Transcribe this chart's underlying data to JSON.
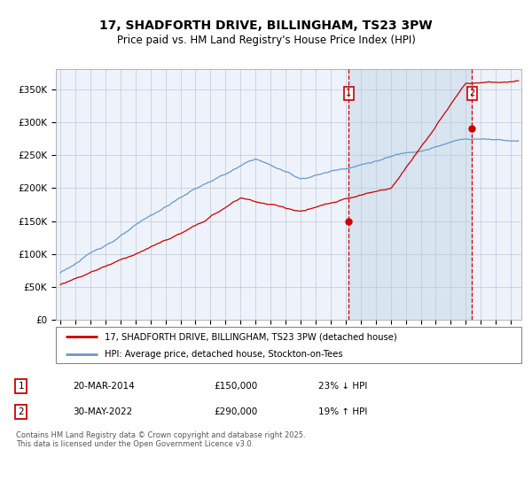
{
  "title": "17, SHADFORTH DRIVE, BILLINGHAM, TS23 3PW",
  "subtitle": "Price paid vs. HM Land Registry's House Price Index (HPI)",
  "legend_line1": "17, SHADFORTH DRIVE, BILLINGHAM, TS23 3PW (detached house)",
  "legend_line2": "HPI: Average price, detached house, Stockton-on-Tees",
  "sale1_date": "20-MAR-2014",
  "sale1_price": 150000,
  "sale1_hpi": "23% ↓ HPI",
  "sale2_date": "30-MAY-2022",
  "sale2_price": 290000,
  "sale2_hpi": "19% ↑ HPI",
  "footer": "Contains HM Land Registry data © Crown copyright and database right 2025.\nThis data is licensed under the Open Government Licence v3.0.",
  "red_color": "#cc0000",
  "blue_color": "#6699cc",
  "plot_bg_color": "#eef2fa",
  "shade_color": "#d8e4f0",
  "grid_color": "#c0c8d8",
  "ylim": [
    0,
    380000
  ],
  "year_start": 1995,
  "year_end": 2025,
  "sale1_year": 2014.21,
  "sale2_year": 2022.41
}
